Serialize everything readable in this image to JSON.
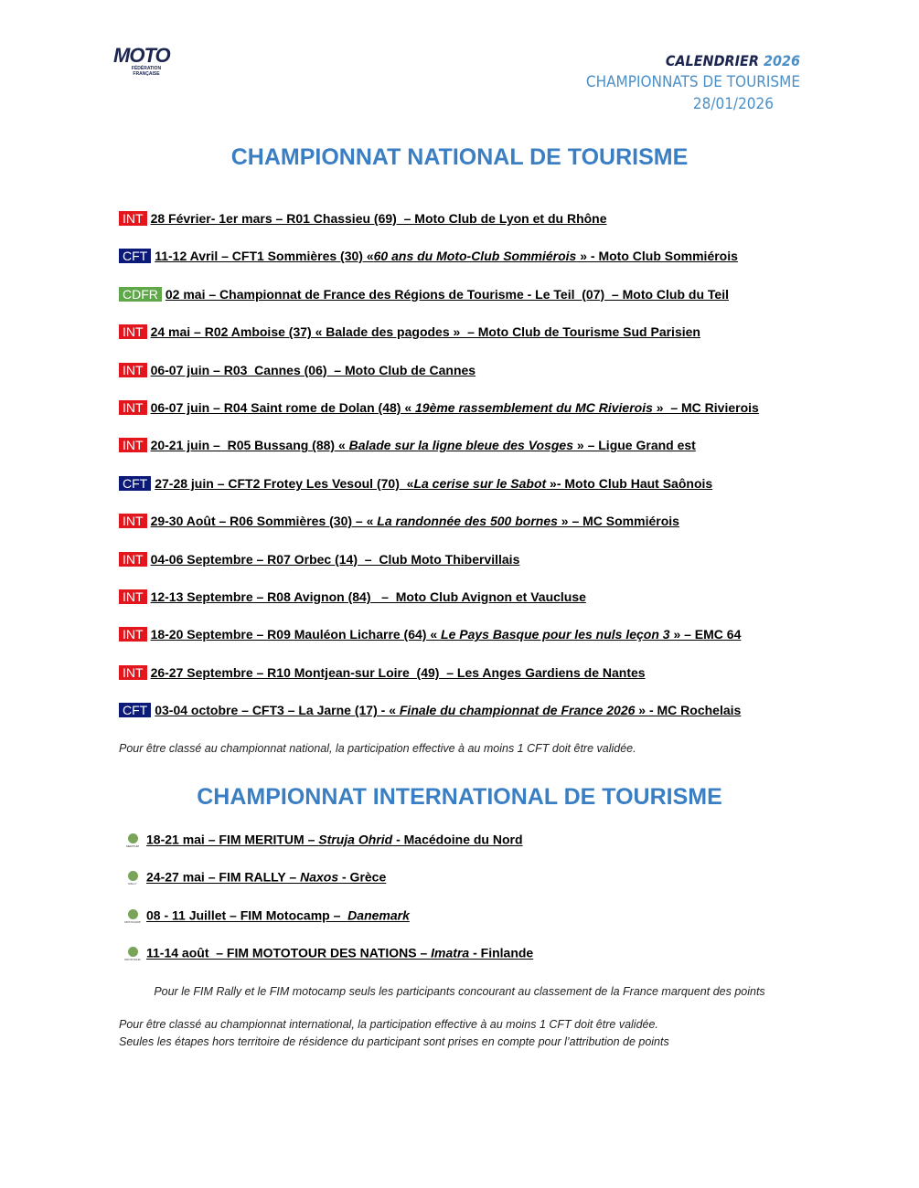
{
  "header": {
    "logo": "MOTO",
    "logo_sub": "FÉDÉRATION FRANÇAISE",
    "calendar": "CALENDRIER",
    "year": "2026",
    "subtitle": "CHAMPIONNATS DE TOURISME",
    "date": "28/01/2026"
  },
  "tag_colors": {
    "INT": "#e3161d",
    "CFT": "#0b1a78",
    "CDFR": "#5ea84a"
  },
  "national": {
    "title": "CHAMPIONNAT NATIONAL DE TOURISME",
    "events": [
      {
        "tag": "INT",
        "parts": [
          {
            "text": "28 Février- 1er mars – R01 Chassieu (69)  – Moto Club de Lyon et du Rhône",
            "italic": false
          }
        ]
      },
      {
        "tag": "CFT",
        "parts": [
          {
            "text": "11-12 Avril – CFT1 Sommières (30) «",
            "italic": false
          },
          {
            "text": "60 ans du Moto-Club Sommiérois",
            "italic": true
          },
          {
            "text": " » - Moto Club Sommiérois",
            "italic": false
          }
        ]
      },
      {
        "tag": "CDFR",
        "parts": [
          {
            "text": "02 mai – Championnat de France des Régions de Tourisme - Le Teil  (07)  – Moto Club du Teil",
            "italic": false
          }
        ]
      },
      {
        "tag": "INT",
        "parts": [
          {
            "text": "24 mai – R02 Amboise (37) « Balade des pagodes »  – Moto Club de Tourisme Sud Parisien",
            "italic": false
          }
        ]
      },
      {
        "tag": "INT",
        "parts": [
          {
            "text": "06-07 juin – R03  Cannes (06)  – Moto Club de Cannes",
            "italic": false
          }
        ]
      },
      {
        "tag": "INT",
        "parts": [
          {
            "text": "06-07 juin – R04 Saint rome de Dolan (48) « ",
            "italic": false
          },
          {
            "text": "19ème rassemblement du MC Rivierois",
            "italic": true
          },
          {
            "text": " »  – MC Rivierois",
            "italic": false
          }
        ]
      },
      {
        "tag": "INT",
        "parts": [
          {
            "text": "20-21 juin –  R05 Bussang (88) « ",
            "italic": false
          },
          {
            "text": "Balade sur la ligne bleue des Vosges",
            "italic": true
          },
          {
            "text": " » – Ligue Grand est",
            "italic": false
          }
        ]
      },
      {
        "tag": "CFT",
        "parts": [
          {
            "text": "27-28 juin – CFT2 Frotey Les Vesoul (70)  «",
            "italic": false
          },
          {
            "text": "La cerise sur le Sabot",
            "italic": true
          },
          {
            "text": " »- Moto Club Haut Saônois",
            "italic": false
          }
        ]
      },
      {
        "tag": "INT",
        "parts": [
          {
            "text": "29-30 Août – R06 Sommières (30) – « ",
            "italic": false
          },
          {
            "text": "La randonnée des 500 bornes",
            "italic": true
          },
          {
            "text": " » – MC Sommiérois",
            "italic": false
          }
        ]
      },
      {
        "tag": "INT",
        "parts": [
          {
            "text": "04-06 Septembre – R07 Orbec (14)  –  Club Moto Thibervillais",
            "italic": false
          }
        ]
      },
      {
        "tag": "INT",
        "parts": [
          {
            "text": "12-13 Septembre – R08 Avignon (84)   –  Moto Club Avignon et Vaucluse",
            "italic": false
          }
        ]
      },
      {
        "tag": "INT",
        "parts": [
          {
            "text": "18-20 Septembre – R09 Mauléon Licharre (64) « ",
            "italic": false
          },
          {
            "text": "Le Pays Basque pour les nuls leçon 3",
            "italic": true
          },
          {
            "text": " » – EMC 64",
            "italic": false
          }
        ]
      },
      {
        "tag": "INT",
        "parts": [
          {
            "text": "26-27 Septembre – R10 Montjean-sur Loire  (49)  – Les Anges Gardiens de Nantes",
            "italic": false
          }
        ]
      },
      {
        "tag": "CFT",
        "parts": [
          {
            "text": "03-04 octobre – CFT3 – La Jarne (17) - « ",
            "italic": false
          },
          {
            "text": "Finale du championnat de France 2026",
            "italic": true
          },
          {
            "text": " » - MC Rochelais",
            "italic": false
          }
        ]
      }
    ],
    "note": "Pour être classé au championnat national, la participation effective à au moins 1 CFT doit être validée."
  },
  "international": {
    "title": "CHAMPIONNAT INTERNATIONAL DE TOURISME",
    "events": [
      {
        "icon": "MERITUM",
        "parts": [
          {
            "text": "18-21 mai – FIM MERITUM – ",
            "italic": false
          },
          {
            "text": "Struja Ohrid",
            "italic": true
          },
          {
            "text": " - Macédoine du Nord",
            "italic": false
          }
        ]
      },
      {
        "icon": "RALLY",
        "parts": [
          {
            "text": "24-27 mai – FIM RALLY – ",
            "italic": false
          },
          {
            "text": "Naxos",
            "italic": true
          },
          {
            "text": " - Grèce",
            "italic": false
          }
        ]
      },
      {
        "icon": "MOTOCAMP",
        "parts": [
          {
            "text": "08 - 11 Juillet – FIM Motocamp –  ",
            "italic": false
          },
          {
            "text": "Danemark",
            "italic": true
          }
        ]
      },
      {
        "icon": "MOTOTOUR",
        "parts": [
          {
            "text": "11-14 août  – FIM MOTOTOUR DES NATIONS – ",
            "italic": false
          },
          {
            "text": "Imatra",
            "italic": true
          },
          {
            "text": " - Finlande",
            "italic": false
          }
        ]
      }
    ],
    "center_note": "Pour le FIM Rally et le FIM motocamp seuls les participants concourant au classement de la France marquent des points",
    "notes": [
      "Pour être classé au championnat international, la participation effective à au moins 1 CFT doit être validée.",
      "Seules les étapes hors territoire de résidence du participant sont prises en compte pour l’attribution de points"
    ]
  }
}
